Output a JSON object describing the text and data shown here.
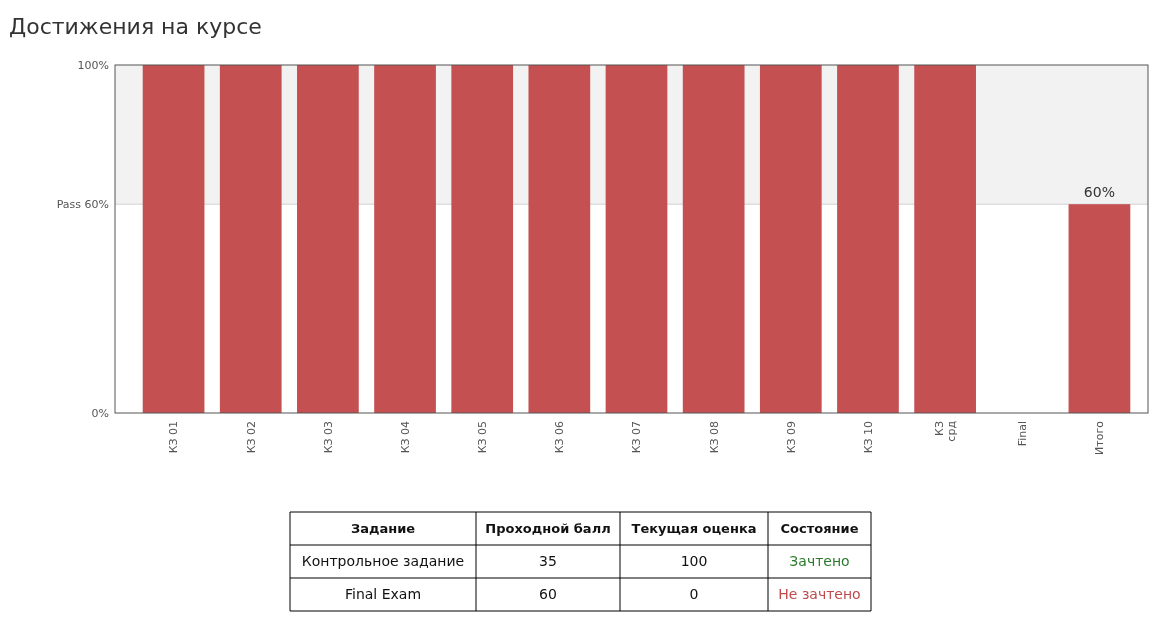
{
  "chart_data": {
    "type": "bar",
    "title": "Достижения на курсе",
    "categories": [
      "КЗ 01",
      "КЗ 02",
      "КЗ 03",
      "КЗ 04",
      "КЗ 05",
      "КЗ 06",
      "КЗ 07",
      "КЗ 08",
      "КЗ 09",
      "КЗ 10",
      "КЗ срд",
      "Final",
      "Итого"
    ],
    "values": [
      100,
      100,
      100,
      100,
      100,
      100,
      100,
      100,
      100,
      100,
      100,
      0,
      60
    ],
    "value_labels": [
      null,
      null,
      null,
      null,
      null,
      null,
      null,
      null,
      null,
      null,
      null,
      null,
      "60%"
    ],
    "color": "#c44d4e",
    "ylim": [
      0,
      100
    ],
    "yticks": [
      {
        "value": 0,
        "label": "0%"
      },
      {
        "value": 60,
        "label": "Pass 60%"
      },
      {
        "value": 100,
        "label": "100%"
      }
    ],
    "bands": [
      {
        "axis": "y",
        "from": 60,
        "to": 100,
        "color": "#f2f2f2"
      }
    ],
    "ref_lines": [
      {
        "axis": "y",
        "value": 60,
        "color": "#d0d0d0"
      }
    ],
    "annotations": [
      "Задание",
      "Проходной балл",
      "Текущая оценка",
      "Состояние",
      "Контрольное задание",
      "35",
      "100",
      "Зачтено",
      "Final Exam",
      "60",
      "0",
      "Не зачтено"
    ]
  }
}
